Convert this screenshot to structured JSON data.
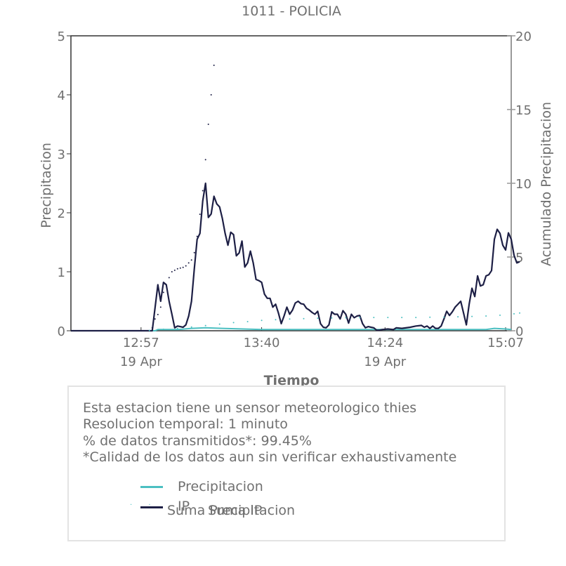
{
  "chart_data": {
    "type": "line",
    "title": "1011 - POLICIA",
    "xlabel": "Tiempo",
    "ylabel": "Precipitacion",
    "y2label": "Acumulado Precipitacion",
    "ylim": [
      0,
      5
    ],
    "y2lim": [
      0,
      20
    ],
    "yticks": [
      "0",
      "1",
      "2",
      "3",
      "4",
      "5"
    ],
    "y2ticks": [
      "0",
      "5",
      "10",
      "15",
      "20"
    ],
    "xlim": [
      "12:32",
      "15:09"
    ],
    "xticks": [
      {
        "time": "12:57",
        "date": "19 Apr"
      },
      {
        "time": "13:40",
        "date": ""
      },
      {
        "time": "14:24",
        "date": "19 Apr"
      },
      {
        "time": "15:07",
        "date": ""
      }
    ],
    "colors": {
      "precipitacion": "#4bbfc1",
      "ip": "#1d1f45",
      "suma": "#1d1f45",
      "suma_ip": "#4bbfc1"
    },
    "series": [
      {
        "name": "Precipitacion",
        "axis": "left",
        "style": "line",
        "points": [
          [
            "12:32",
            0
          ],
          [
            "13:02",
            0
          ],
          [
            "13:03",
            0.02
          ],
          [
            "13:10",
            0.02
          ],
          [
            "13:15",
            0.04
          ],
          [
            "13:20",
            0.05
          ],
          [
            "13:26",
            0.04
          ],
          [
            "13:40",
            0.02
          ],
          [
            "14:00",
            0.02
          ],
          [
            "14:24",
            0.02
          ],
          [
            "14:50",
            0.02
          ],
          [
            "15:00",
            0.02
          ],
          [
            "15:03",
            0.04
          ],
          [
            "15:07",
            0.03
          ],
          [
            "15:09",
            0.02
          ]
        ]
      },
      {
        "name": "IP",
        "axis": "left",
        "style": "line",
        "points": [
          [
            "12:32",
            0
          ],
          [
            "13:01",
            0
          ],
          [
            "13:03",
            0.78
          ],
          [
            "13:04",
            0.5
          ],
          [
            "13:05",
            0.82
          ],
          [
            "13:06",
            0.78
          ],
          [
            "13:07",
            0.5
          ],
          [
            "13:08",
            0.28
          ],
          [
            "13:09",
            0.05
          ],
          [
            "13:10",
            0.08
          ],
          [
            "13:12",
            0.06
          ],
          [
            "13:13",
            0.1
          ],
          [
            "13:14",
            0.25
          ],
          [
            "13:15",
            0.5
          ],
          [
            "13:16",
            1.05
          ],
          [
            "13:17",
            1.55
          ],
          [
            "13:18",
            1.65
          ],
          [
            "13:19",
            2.2
          ],
          [
            "13:20",
            2.5
          ],
          [
            "13:21",
            1.92
          ],
          [
            "13:22",
            1.98
          ],
          [
            "13:23",
            2.28
          ],
          [
            "13:24",
            2.15
          ],
          [
            "13:25",
            2.1
          ],
          [
            "13:26",
            1.9
          ],
          [
            "13:27",
            1.65
          ],
          [
            "13:28",
            1.45
          ],
          [
            "13:29",
            1.67
          ],
          [
            "13:30",
            1.63
          ],
          [
            "13:31",
            1.27
          ],
          [
            "13:32",
            1.32
          ],
          [
            "13:33",
            1.52
          ],
          [
            "13:34",
            1.08
          ],
          [
            "13:35",
            1.15
          ],
          [
            "13:36",
            1.35
          ],
          [
            "13:37",
            1.15
          ],
          [
            "13:38",
            0.87
          ],
          [
            "13:39",
            0.85
          ],
          [
            "13:40",
            0.82
          ],
          [
            "13:41",
            0.62
          ],
          [
            "13:42",
            0.55
          ],
          [
            "13:43",
            0.55
          ],
          [
            "13:44",
            0.4
          ],
          [
            "13:45",
            0.45
          ],
          [
            "13:46",
            0.3
          ],
          [
            "13:47",
            0.12
          ],
          [
            "13:48",
            0.25
          ],
          [
            "13:49",
            0.4
          ],
          [
            "13:50",
            0.28
          ],
          [
            "13:51",
            0.35
          ],
          [
            "13:52",
            0.47
          ],
          [
            "13:53",
            0.5
          ],
          [
            "13:54",
            0.46
          ],
          [
            "13:55",
            0.45
          ],
          [
            "13:56",
            0.38
          ],
          [
            "13:57",
            0.35
          ],
          [
            "13:58",
            0.31
          ],
          [
            "13:59",
            0.28
          ],
          [
            "14:00",
            0.33
          ],
          [
            "14:01",
            0.12
          ],
          [
            "14:02",
            0.06
          ],
          [
            "14:03",
            0.05
          ],
          [
            "14:04",
            0.1
          ],
          [
            "14:05",
            0.32
          ],
          [
            "14:06",
            0.28
          ],
          [
            "14:07",
            0.28
          ],
          [
            "14:08",
            0.2
          ],
          [
            "14:09",
            0.34
          ],
          [
            "14:10",
            0.28
          ],
          [
            "14:11",
            0.13
          ],
          [
            "14:12",
            0.28
          ],
          [
            "14:13",
            0.22
          ],
          [
            "14:14",
            0.25
          ],
          [
            "14:15",
            0.26
          ],
          [
            "14:16",
            0.12
          ],
          [
            "14:17",
            0.05
          ],
          [
            "14:18",
            0.07
          ],
          [
            "14:19",
            0.06
          ],
          [
            "14:20",
            0.05
          ],
          [
            "14:21",
            0.01
          ],
          [
            "14:22",
            0.01
          ],
          [
            "14:23",
            0.02
          ],
          [
            "14:25",
            0.03
          ],
          [
            "14:27",
            0.02
          ],
          [
            "14:28",
            0.05
          ],
          [
            "14:30",
            0.04
          ],
          [
            "14:33",
            0.06
          ],
          [
            "14:35",
            0.08
          ],
          [
            "14:37",
            0.09
          ],
          [
            "14:38",
            0.06
          ],
          [
            "14:39",
            0.08
          ],
          [
            "14:40",
            0.04
          ],
          [
            "14:41",
            0.08
          ],
          [
            "14:42",
            0.04
          ],
          [
            "14:43",
            0.04
          ],
          [
            "14:44",
            0.08
          ],
          [
            "14:45",
            0.2
          ],
          [
            "14:46",
            0.33
          ],
          [
            "14:47",
            0.26
          ],
          [
            "14:48",
            0.32
          ],
          [
            "14:49",
            0.4
          ],
          [
            "14:50",
            0.45
          ],
          [
            "14:51",
            0.5
          ],
          [
            "14:52",
            0.3
          ],
          [
            "14:53",
            0.1
          ],
          [
            "14:54",
            0.45
          ],
          [
            "14:55",
            0.72
          ],
          [
            "14:56",
            0.58
          ],
          [
            "14:57",
            0.93
          ],
          [
            "14:58",
            0.76
          ],
          [
            "14:59",
            0.78
          ],
          [
            "15:00",
            0.93
          ],
          [
            "15:01",
            0.95
          ],
          [
            "15:02",
            1.02
          ],
          [
            "15:03",
            1.55
          ],
          [
            "15:04",
            1.72
          ],
          [
            "15:05",
            1.65
          ],
          [
            "15:06",
            1.45
          ],
          [
            "15:07",
            1.37
          ],
          [
            "15:08",
            1.66
          ],
          [
            "15:09",
            1.55
          ],
          [
            "15:10",
            1.28
          ],
          [
            "15:11",
            1.15
          ],
          [
            "15:12",
            1.17
          ]
        ]
      },
      {
        "name": "Suma Precipitacion",
        "axis": "right",
        "style": "dots",
        "points": [
          [
            "13:01",
            0.2
          ],
          [
            "13:02",
            0.8
          ],
          [
            "13:03",
            1.1
          ],
          [
            "13:04",
            1.6
          ],
          [
            "13:05",
            2.6
          ],
          [
            "13:06",
            3.1
          ],
          [
            "13:07",
            3.6
          ],
          [
            "13:08",
            4.0
          ],
          [
            "13:09",
            4.1
          ],
          [
            "13:10",
            4.2
          ],
          [
            "13:11",
            4.25
          ],
          [
            "13:12",
            4.3
          ],
          [
            "13:13",
            4.4
          ],
          [
            "13:14",
            4.6
          ],
          [
            "13:15",
            4.8
          ],
          [
            "13:16",
            5.3
          ],
          [
            "13:17",
            6.4
          ],
          [
            "13:18",
            7.9
          ],
          [
            "13:19",
            9.5
          ],
          [
            "13:20",
            11.6
          ],
          [
            "13:21",
            14.0
          ],
          [
            "13:22",
            16.0
          ],
          [
            "13:23",
            18.0
          ]
        ]
      },
      {
        "name": "Suma IP",
        "axis": "right",
        "style": "dots",
        "points": [
          [
            "13:00",
            0.02
          ],
          [
            "13:05",
            0.1
          ],
          [
            "13:10",
            0.15
          ],
          [
            "13:15",
            0.25
          ],
          [
            "13:20",
            0.35
          ],
          [
            "13:25",
            0.45
          ],
          [
            "13:30",
            0.55
          ],
          [
            "13:35",
            0.62
          ],
          [
            "13:40",
            0.7
          ],
          [
            "13:45",
            0.75
          ],
          [
            "13:50",
            0.8
          ],
          [
            "13:55",
            0.82
          ],
          [
            "14:00",
            0.85
          ],
          [
            "14:05",
            0.87
          ],
          [
            "14:10",
            0.88
          ],
          [
            "14:15",
            0.9
          ],
          [
            "14:20",
            0.9
          ],
          [
            "14:25",
            0.9
          ],
          [
            "14:30",
            0.9
          ],
          [
            "14:35",
            0.9
          ],
          [
            "14:40",
            0.92
          ],
          [
            "14:45",
            0.92
          ],
          [
            "14:50",
            0.95
          ],
          [
            "14:55",
            0.97
          ],
          [
            "15:00",
            1.0
          ],
          [
            "15:05",
            1.05
          ],
          [
            "15:10",
            1.15
          ],
          [
            "15:12",
            1.2
          ]
        ]
      }
    ]
  },
  "info": {
    "line1": "Esta estacion tiene un sensor meteorologico thies",
    "line2": "Resolucion temporal: 1 minuto",
    "line3": "% de datos transmitidos*: 99.45%",
    "line4": "*Calidad de los datos aun sin verificar exhaustivamente"
  },
  "legend": {
    "precipitacion": "Precipitacion",
    "ip": "IP",
    "suma": "Suma Precipitacion",
    "suma_ip": "Suma IP"
  }
}
